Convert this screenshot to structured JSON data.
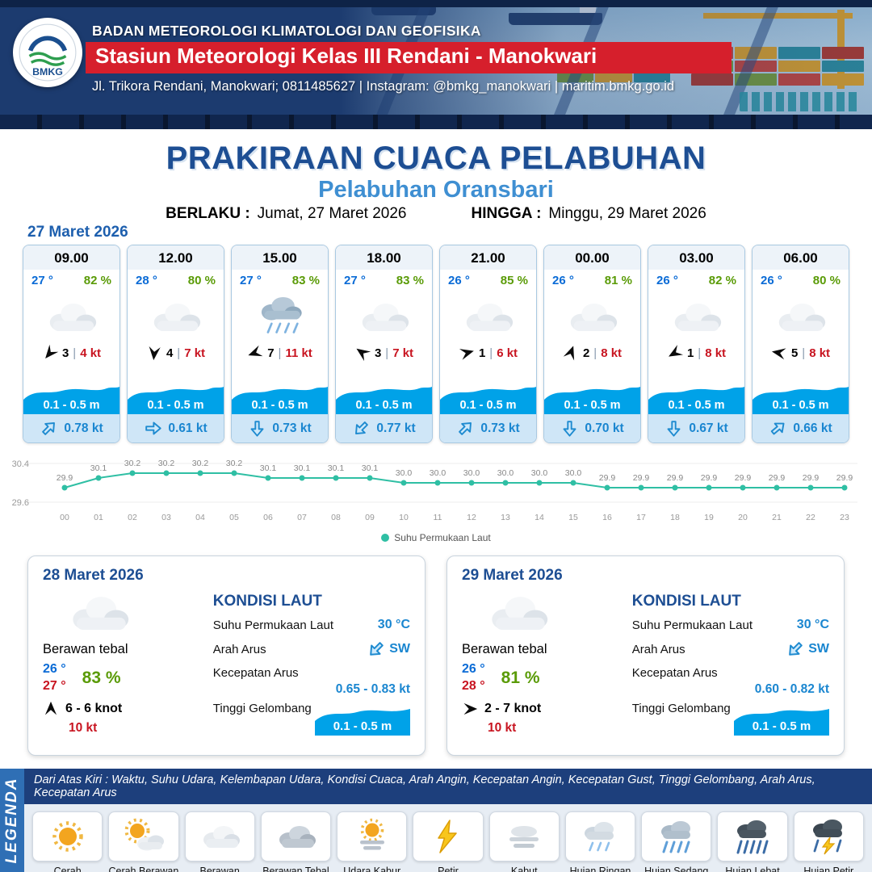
{
  "header": {
    "logo": "BMKG",
    "agency": "BADAN METEOROLOGI KLIMATOLOGI DAN GEOFISIKA",
    "station": "Stasiun Meteorologi Kelas III Rendani - Manokwari",
    "contact": "Jl. Trikora Rendani, Manokwari; 0811485627 | Instagram: @bmkg_manokwari | maritim.bmkg.go.id"
  },
  "title": {
    "main": "PRAKIRAAN CUACA PELABUHAN",
    "subtitle": "Pelabuhan Oransbari",
    "berlaku_label": "BERLAKU :",
    "berlaku_value": "Jumat, 27 Maret 2026",
    "hingga_label": "HINGGA :",
    "hingga_value": "Minggu, 29 Maret 2026"
  },
  "forecast": {
    "date": "27 Maret 2026",
    "sep": "|",
    "cards": [
      {
        "time": "09.00",
        "temp": "27 °",
        "humidity": "82 %",
        "icon": "cloud",
        "wind_rot": 130,
        "wind_value": "3",
        "wind_speed": "4 kt",
        "wave": "0.1 - 0.5 m",
        "current_rot": -45,
        "current": "0.78 kt"
      },
      {
        "time": "12.00",
        "temp": "28 °",
        "humidity": "80 %",
        "icon": "cloud",
        "wind_rot": 95,
        "wind_value": "4",
        "wind_speed": "7 kt",
        "wave": "0.1 - 0.5 m",
        "current_rot": 0,
        "current": "0.61 kt"
      },
      {
        "time": "15.00",
        "temp": "27 °",
        "humidity": "83 %",
        "icon": "rain",
        "wind_rot": 160,
        "wind_value": "7",
        "wind_speed": "11 kt",
        "wave": "0.1 - 0.5 m",
        "current_rot": 90,
        "current": "0.73 kt"
      },
      {
        "time": "18.00",
        "temp": "27 °",
        "humidity": "83 %",
        "icon": "cloud",
        "wind_rot": -145,
        "wind_value": "3",
        "wind_speed": "7 kt",
        "wave": "0.1 - 0.5 m",
        "current_rot": 135,
        "current": "0.77 kt"
      },
      {
        "time": "21.00",
        "temp": "26 °",
        "humidity": "85 %",
        "icon": "cloud",
        "wind_rot": -15,
        "wind_value": "1",
        "wind_speed": "6 kt",
        "wave": "0.1 - 0.5 m",
        "current_rot": -45,
        "current": "0.73 kt"
      },
      {
        "time": "00.00",
        "temp": "26 °",
        "humidity": "81 %",
        "icon": "cloud",
        "wind_rot": -70,
        "wind_value": "2",
        "wind_speed": "8 kt",
        "wave": "0.1 - 0.5 m",
        "current_rot": 90,
        "current": "0.70 kt"
      },
      {
        "time": "03.00",
        "temp": "26 °",
        "humidity": "82 %",
        "icon": "cloud",
        "wind_rot": 150,
        "wind_value": "1",
        "wind_speed": "8 kt",
        "wave": "0.1 - 0.5 m",
        "current_rot": 90,
        "current": "0.67 kt"
      },
      {
        "time": "06.00",
        "temp": "26 °",
        "humidity": "80 %",
        "icon": "cloud",
        "wind_rot": -170,
        "wind_value": "5",
        "wind_speed": "8 kt",
        "wave": "0.1 - 0.5 m",
        "current_rot": -40,
        "current": "0.66 kt"
      }
    ]
  },
  "chart_data": {
    "type": "line",
    "series_label": "Suhu Permukaan Laut",
    "x": [
      "00",
      "01",
      "02",
      "03",
      "04",
      "05",
      "06",
      "07",
      "08",
      "09",
      "10",
      "11",
      "12",
      "13",
      "14",
      "15",
      "16",
      "17",
      "18",
      "19",
      "20",
      "21",
      "22",
      "23"
    ],
    "values": [
      29.9,
      30.1,
      30.2,
      30.2,
      30.2,
      30.2,
      30.1,
      30.1,
      30.1,
      30.1,
      30.0,
      30.0,
      30.0,
      30.0,
      30.0,
      30.0,
      29.9,
      29.9,
      29.9,
      29.9,
      29.9,
      29.9,
      29.9,
      29.9
    ],
    "ylim": [
      29.6,
      30.4
    ],
    "line_color": "#2fbfa4",
    "grid": false,
    "legend_position": "bottom"
  },
  "days": [
    {
      "date": "28 Maret 2026",
      "icon": "cloud-thick",
      "condition": "Berawan tebal",
      "temp_min": "26 °",
      "temp_max": "27 °",
      "humidity": "83 %",
      "wind_rot": -90,
      "wind": "6 - 6 knot",
      "gust": "10 kt",
      "sea": {
        "heading": "KONDISI LAUT",
        "sst_label": "Suhu Permukaan Laut",
        "sst_value": "30 °C",
        "dir_label": "Arah Arus",
        "dir_value": "SW",
        "dir_rot": 135,
        "speed_label": "Kecepatan Arus",
        "speed_value": "0.65 - 0.83 kt",
        "wave_label": "Tinggi Gelombang",
        "wave_value": "0.1 - 0.5 m"
      }
    },
    {
      "date": "29 Maret 2026",
      "icon": "cloud-thick",
      "condition": "Berawan tebal",
      "temp_min": "26 °",
      "temp_max": "28 °",
      "humidity": "81 %",
      "wind_rot": 0,
      "wind": "2 - 7 knot",
      "gust": "10 kt",
      "sea": {
        "heading": "KONDISI LAUT",
        "sst_label": "Suhu Permukaan Laut",
        "sst_value": "30 °C",
        "dir_label": "Arah Arus",
        "dir_value": "SW",
        "dir_rot": 135,
        "speed_label": "Kecepatan Arus",
        "speed_value": "0.60 - 0.82 kt",
        "wave_label": "Tinggi Gelombang",
        "wave_value": "0.1 - 0.5 m"
      }
    }
  ],
  "legend": {
    "strip": "LEGENDA",
    "note": "Dari Atas Kiri : Waktu, Suhu Udara, Kelembapan Udara, Kondisi Cuaca, Arah Angin, Kecepatan Angin, Kecepatan Gust, Tinggi Gelombang, Arah Arus, Kecepatan Arus",
    "items": [
      {
        "label": "Cerah",
        "icon": "sun"
      },
      {
        "label": "Cerah Berawan",
        "icon": "sun-cloud"
      },
      {
        "label": "Berawan",
        "icon": "cloud"
      },
      {
        "label": "Berawan Tebal",
        "icon": "cloud-thick"
      },
      {
        "label": "Udara Kabur",
        "icon": "haze"
      },
      {
        "label": "Petir",
        "icon": "lightning"
      },
      {
        "label": "Kabut",
        "icon": "fog"
      },
      {
        "label": "Hujan Ringan",
        "icon": "rain-light"
      },
      {
        "label": "Hujan Sedang",
        "icon": "rain-medium"
      },
      {
        "label": "Hujan Lebat",
        "icon": "rain-heavy"
      },
      {
        "label": "Hujan Petir",
        "icon": "rain-thunder"
      }
    ]
  },
  "colors": {
    "header_navy": "#1c3b6f",
    "station_red": "#d61f2c",
    "title_blue": "#1d4e93",
    "subtitle_blue": "#3f8fd2",
    "temp_blue": "#0a6bd6",
    "temp_red": "#c81420",
    "humidity_green": "#5a9b07",
    "wave_blue": "#00a2e8",
    "current_blue": "#1a86d0",
    "chart_teal": "#2fbfa4"
  }
}
